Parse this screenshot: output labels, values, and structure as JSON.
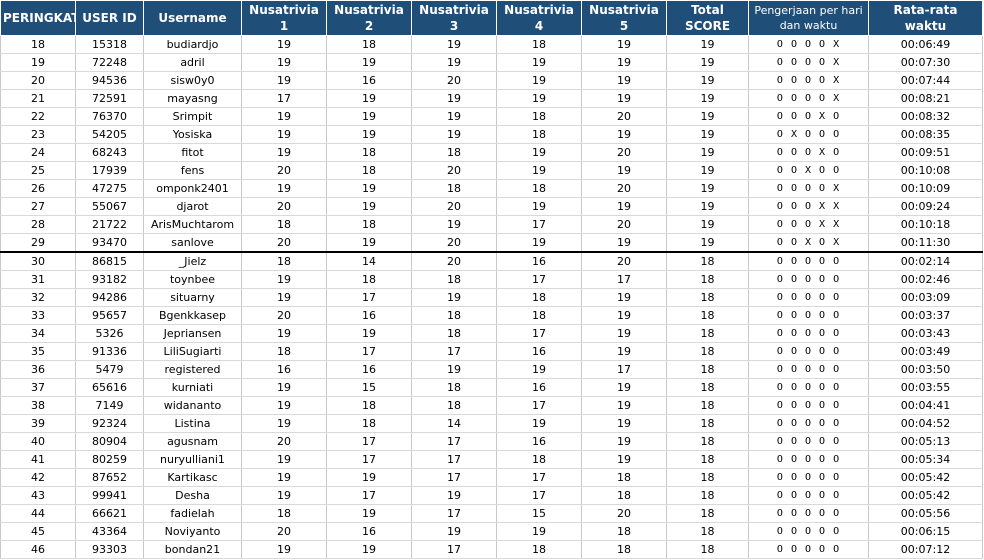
{
  "headers": [
    "PERINGKAT",
    "USER ID",
    "Username",
    "Nusatrivia 1",
    "Nusatrivia 2",
    "Nusatrivia 3",
    "Nusatrivia 4",
    "Nusatrivia 5",
    "Total SCORE",
    "Pengerjaan per hari dan waktu",
    "Rata-rata waktu"
  ],
  "rows": [
    [
      "18",
      "15318",
      "budiardjo",
      "19",
      "18",
      "19",
      "18",
      "19",
      "19",
      "O O O O X",
      "00:06:49"
    ],
    [
      "19",
      "72248",
      "adril",
      "19",
      "19",
      "19",
      "19",
      "19",
      "19",
      "O O O O X",
      "00:07:30"
    ],
    [
      "20",
      "94536",
      "sisw0y0",
      "19",
      "16",
      "20",
      "19",
      "19",
      "19",
      "O O O O X",
      "00:07:44"
    ],
    [
      "21",
      "72591",
      "mayasng",
      "17",
      "19",
      "19",
      "19",
      "19",
      "19",
      "O O O O X",
      "00:08:21"
    ],
    [
      "22",
      "76370",
      "Srimpit",
      "19",
      "19",
      "19",
      "18",
      "20",
      "19",
      "O O O X O",
      "00:08:32"
    ],
    [
      "23",
      "54205",
      "Yosiska",
      "19",
      "19",
      "19",
      "18",
      "19",
      "19",
      "O X O O O",
      "00:08:35"
    ],
    [
      "24",
      "68243",
      "fitot",
      "19",
      "18",
      "18",
      "19",
      "20",
      "19",
      "O O O X O",
      "00:09:51"
    ],
    [
      "25",
      "17939",
      "fens",
      "20",
      "18",
      "20",
      "19",
      "19",
      "19",
      "O O X O O",
      "00:10:08"
    ],
    [
      "26",
      "47275",
      "omponk2401",
      "19",
      "19",
      "18",
      "18",
      "20",
      "19",
      "O O O O X",
      "00:10:09"
    ],
    [
      "27",
      "55067",
      "djarot",
      "20",
      "19",
      "20",
      "19",
      "19",
      "19",
      "O O O X X",
      "00:09:24"
    ],
    [
      "28",
      "21722",
      "ArisMuchtarom",
      "18",
      "18",
      "19",
      "17",
      "20",
      "19",
      "O O O X X",
      "00:10:18"
    ],
    [
      "29",
      "93470",
      "sanlove",
      "20",
      "19",
      "20",
      "19",
      "19",
      "19",
      "O O X O X",
      "00:11:30"
    ],
    [
      "30",
      "86815",
      "_Jielz",
      "18",
      "14",
      "20",
      "16",
      "20",
      "18",
      "O O O O O",
      "00:02:14"
    ],
    [
      "31",
      "93182",
      "toynbee",
      "19",
      "18",
      "18",
      "17",
      "17",
      "18",
      "O O O O O",
      "00:02:46"
    ],
    [
      "32",
      "94286",
      "situarny",
      "19",
      "17",
      "19",
      "18",
      "19",
      "18",
      "O O O O O",
      "00:03:09"
    ],
    [
      "33",
      "95657",
      "Bgenkkasep",
      "20",
      "16",
      "18",
      "18",
      "19",
      "18",
      "O O O O O",
      "00:03:37"
    ],
    [
      "34",
      "5326",
      "Jepriansen",
      "19",
      "19",
      "18",
      "17",
      "19",
      "18",
      "O O O O O",
      "00:03:43"
    ],
    [
      "35",
      "91336",
      "LiliSugiarti",
      "18",
      "17",
      "17",
      "16",
      "19",
      "18",
      "O O O O O",
      "00:03:49"
    ],
    [
      "36",
      "5479",
      "registered",
      "16",
      "16",
      "19",
      "19",
      "17",
      "18",
      "O O O O O",
      "00:03:50"
    ],
    [
      "37",
      "65616",
      "kurniati",
      "19",
      "15",
      "18",
      "16",
      "19",
      "18",
      "O O O O O",
      "00:03:55"
    ],
    [
      "38",
      "7149",
      "widananto",
      "19",
      "18",
      "18",
      "17",
      "19",
      "18",
      "O O O O O",
      "00:04:41"
    ],
    [
      "39",
      "92324",
      "Listina",
      "19",
      "18",
      "14",
      "19",
      "19",
      "18",
      "O O O O O",
      "00:04:52"
    ],
    [
      "40",
      "80904",
      "agusnam",
      "20",
      "17",
      "17",
      "16",
      "19",
      "18",
      "O O O O O",
      "00:05:13"
    ],
    [
      "41",
      "80259",
      "nuryulliani1",
      "19",
      "17",
      "17",
      "18",
      "19",
      "18",
      "O O O O O",
      "00:05:34"
    ],
    [
      "42",
      "87652",
      "Kartikasc",
      "19",
      "19",
      "17",
      "17",
      "18",
      "18",
      "O O O O O",
      "00:05:42"
    ],
    [
      "43",
      "99941",
      "Desha",
      "19",
      "17",
      "19",
      "17",
      "18",
      "18",
      "O O O O O",
      "00:05:42"
    ],
    [
      "44",
      "66621",
      "fadielah",
      "18",
      "19",
      "17",
      "15",
      "20",
      "18",
      "O O O O O",
      "00:05:56"
    ],
    [
      "45",
      "43364",
      "Noviyanto",
      "20",
      "16",
      "19",
      "19",
      "18",
      "18",
      "O O O O O",
      "00:06:15"
    ],
    [
      "46",
      "93303",
      "bondan21",
      "19",
      "19",
      "17",
      "18",
      "18",
      "18",
      "O O O O O",
      "00:07:12"
    ]
  ],
  "colors": {
    "header_bg": "#1f4e79",
    "header_text": "#ffffff",
    "divider": "#000000"
  }
}
